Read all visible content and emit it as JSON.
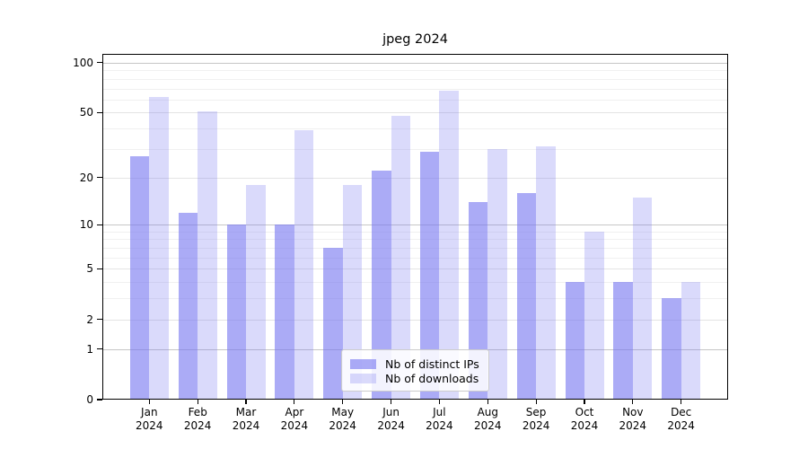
{
  "title": "jpeg 2024",
  "legend": {
    "position": "lower center",
    "items": [
      {
        "label": "Nb of distinct IPs"
      },
      {
        "label": "Nb of downloads"
      }
    ]
  },
  "chart_data": {
    "type": "bar",
    "title": "jpeg 2024",
    "categories": [
      "Jan",
      "Feb",
      "Mar",
      "Apr",
      "May",
      "Jun",
      "Jul",
      "Aug",
      "Sep",
      "Oct",
      "Nov",
      "Dec"
    ],
    "category_year_label": "2024",
    "series": [
      {
        "name": "Nb of distinct IPs",
        "color": "#7878f0",
        "alpha": 0.62,
        "values": [
          27,
          12,
          10,
          10,
          7,
          22,
          29,
          14,
          16,
          4,
          4,
          3
        ]
      },
      {
        "name": "Nb of downloads",
        "color": "#7878f0",
        "alpha": 0.27,
        "values": [
          62,
          51,
          18,
          39,
          18,
          48,
          68,
          30,
          31,
          9,
          15,
          4
        ]
      }
    ],
    "xlabel": "",
    "ylabel": "",
    "yscale": "log1p",
    "ylim": [
      0,
      113
    ],
    "y_major_ticks": [
      100,
      50,
      20,
      10,
      5,
      2,
      1,
      0
    ],
    "y_decade_gridlines": [
      1,
      10,
      100
    ],
    "y_minor_gridlines": [
      3,
      4,
      6,
      7,
      8,
      9,
      30,
      40,
      60,
      70,
      80,
      90
    ],
    "grid": true,
    "legend_position": "lower center"
  }
}
